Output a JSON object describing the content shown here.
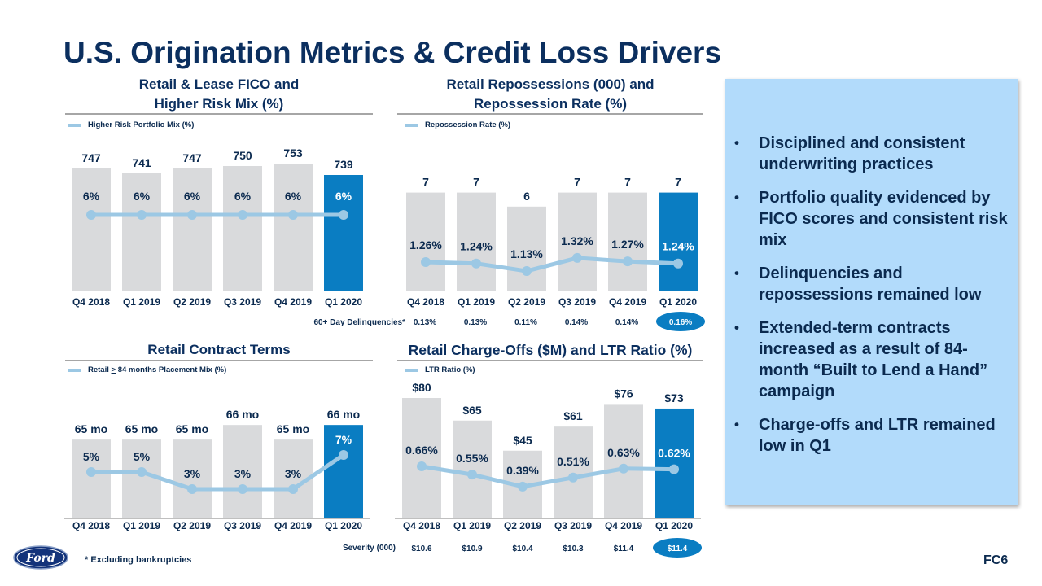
{
  "title": "U.S. Origination Metrics & Credit Loss Drivers",
  "colors": {
    "bar": "#d9dadc",
    "highlight_bar": "#0a7dc2",
    "line": "#9cc8e4",
    "title": "#0b2f5f"
  },
  "chart_data": [
    {
      "type": "bar+line",
      "title_line1": "Retail & Lease FICO and",
      "title_line2": "Higher Risk Mix (%)",
      "legend": "Higher Risk Portfolio Mix (%)",
      "categories": [
        "Q4 2018",
        "Q1 2019",
        "Q2 2019",
        "Q3 2019",
        "Q4 2019",
        "Q1 2020"
      ],
      "bar_values": [
        747,
        741,
        747,
        750,
        753,
        739
      ],
      "bar_labels": [
        "747",
        "741",
        "747",
        "750",
        "753",
        "739"
      ],
      "line": {
        "name": "Higher Risk Portfolio Mix (%)",
        "values": [
          6,
          6,
          6,
          6,
          6,
          6
        ],
        "labels": [
          "6%",
          "6%",
          "6%",
          "6%",
          "6%",
          "6%"
        ]
      }
    },
    {
      "type": "bar+line",
      "title_line1": "Retail Repossessions (000) and",
      "title_line2": "Repossession Rate (%)",
      "legend": "Repossession Rate (%)",
      "categories": [
        "Q4 2018",
        "Q1 2019",
        "Q2 2019",
        "Q3 2019",
        "Q4 2019",
        "Q1 2020"
      ],
      "bar_values": [
        7,
        7,
        6,
        7,
        7,
        7
      ],
      "bar_labels": [
        "7",
        "7",
        "6",
        "7",
        "7",
        "7"
      ],
      "line": {
        "name": "Repossession Rate (%)",
        "values": [
          1.26,
          1.24,
          1.13,
          1.32,
          1.27,
          1.24
        ],
        "labels": [
          "1.26%",
          "1.24%",
          "1.13%",
          "1.32%",
          "1.27%",
          "1.24%"
        ]
      },
      "table_row": {
        "label": "60+ Day Delinquencies*",
        "values": [
          "0.13%",
          "0.13%",
          "0.11%",
          "0.14%",
          "0.14%",
          "0.16%"
        ]
      }
    },
    {
      "type": "bar+line",
      "title_line1": "Retail Contract Terms",
      "legend": "Retail > 84 months Placement Mix (%)",
      "legend_parts": [
        "Retail ",
        ">",
        " 84 months Placement Mix (%)"
      ],
      "categories": [
        "Q4 2018",
        "Q1 2019",
        "Q2 2019",
        "Q3 2019",
        "Q4 2019",
        "Q1 2020"
      ],
      "bar_values": [
        65,
        65,
        65,
        66,
        65,
        66
      ],
      "bar_labels": [
        "65 mo",
        "65 mo",
        "65 mo",
        "66 mo",
        "65 mo",
        "66 mo"
      ],
      "line": {
        "name": "Retail > 84 months Placement Mix (%)",
        "values": [
          5,
          5,
          3,
          3,
          3,
          7
        ],
        "labels": [
          "5%",
          "5%",
          "3%",
          "3%",
          "3%",
          "7%"
        ]
      }
    },
    {
      "type": "bar+line",
      "title_line1": "Retail Charge-Offs ($M) and LTR Ratio (%)",
      "legend": "LTR Ratio (%)",
      "categories": [
        "Q4 2018",
        "Q1 2019",
        "Q2 2019",
        "Q3 2019",
        "Q4 2019",
        "Q1 2020"
      ],
      "bar_values": [
        80,
        65,
        45,
        61,
        76,
        73
      ],
      "bar_labels": [
        "$80",
        "$65",
        "$45",
        "$61",
        "$76",
        "$73"
      ],
      "line": {
        "name": "LTR Ratio (%)",
        "values": [
          0.66,
          0.55,
          0.39,
          0.51,
          0.63,
          0.62
        ],
        "labels": [
          "0.66%",
          "0.55%",
          "0.39%",
          "0.51%",
          "0.63%",
          "0.62%"
        ]
      },
      "table_row": {
        "label": "Severity (000)",
        "values": [
          "$10.6",
          "$10.9",
          "$10.4",
          "$10.3",
          "$11.4",
          "$11.4"
        ]
      }
    }
  ],
  "panel": {
    "bullets": [
      "Disciplined and consistent underwriting practices",
      "Portfolio quality evidenced by FICO scores and consistent risk mix",
      "Delinquencies and repossessions remained low",
      "Extended-term contracts increased as a result of 84-month “Built to Lend a Hand” campaign",
      "Charge-offs and LTR remained low in Q1"
    ]
  },
  "footer": {
    "logo_text": "Ford",
    "footnote": "*  Excluding bankruptcies",
    "page": "FC6"
  }
}
